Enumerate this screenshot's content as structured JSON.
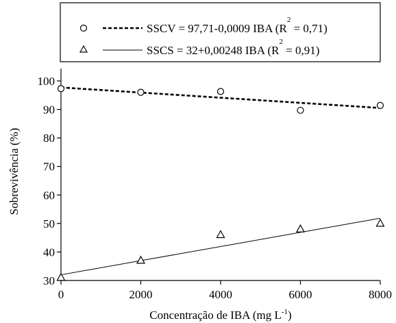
{
  "chart_data": {
    "type": "scatter",
    "xlabel": "Concentração de IBA (mg L",
    "xlabel_sup": "-1",
    "xlabel_end": ")",
    "ylabel": "Sobrevivência (%)",
    "xlim": [
      0,
      8000
    ],
    "ylim": [
      30,
      100
    ],
    "xticks": [
      0,
      2000,
      4000,
      6000,
      8000
    ],
    "yticks": [
      30,
      40,
      50,
      60,
      70,
      80,
      90,
      100
    ],
    "grid": false,
    "legend_position": "top",
    "series": [
      {
        "marker": "circle",
        "line": "dashed",
        "x": [
          0,
          2000,
          4000,
          6000,
          8000
        ],
        "y": [
          97.3,
          96.0,
          96.3,
          89.7,
          91.4
        ],
        "fit": {
          "intercept": 97.71,
          "slope": -0.0009
        },
        "legend_main": "SSCV = 97,71-0,0009 IBA (R",
        "legend_sup": "2",
        "legend_end": " = 0,71)"
      },
      {
        "marker": "triangle",
        "line": "solid",
        "x": [
          0,
          2000,
          4000,
          6000,
          8000
        ],
        "y": [
          31.0,
          37.0,
          46.0,
          48.0,
          50.0
        ],
        "fit": {
          "intercept": 32,
          "slope": 0.00248
        },
        "legend_main": "SSCS = 32+0,00248 IBA (R",
        "legend_sup": "2",
        "legend_end": " = 0,91)"
      }
    ]
  }
}
